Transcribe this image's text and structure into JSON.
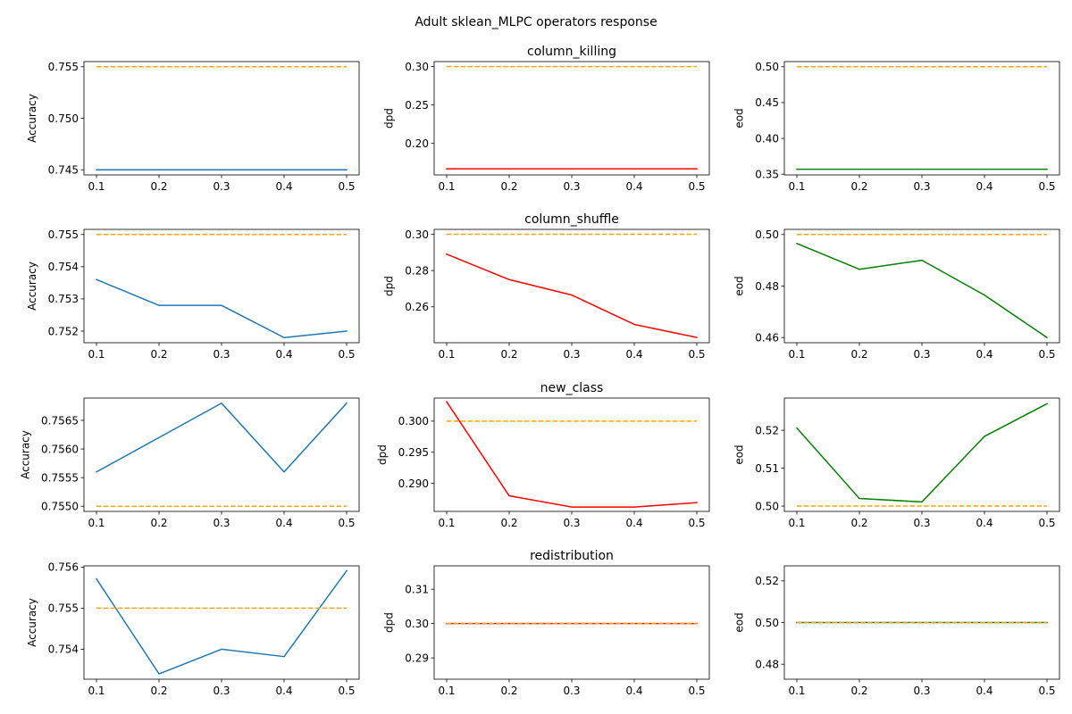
{
  "figure": {
    "title": "Adult sklean_MLPC operators response",
    "background": "#ffffff"
  },
  "chart_data": [
    {
      "type": "line",
      "row": 0,
      "col": 0,
      "title": "",
      "xlabel": "",
      "ylabel": "Accuracy",
      "x": [
        0.1,
        0.2,
        0.3,
        0.4,
        0.5
      ],
      "xticks": [
        "0.1",
        "0.2",
        "0.3",
        "0.4",
        "0.5"
      ],
      "xlim": [
        0.08,
        0.52
      ],
      "yticks": [
        "0.745",
        "0.750",
        "0.755"
      ],
      "ylim": [
        0.7445,
        0.7555
      ],
      "series": [
        {
          "values": [
            0.745,
            0.745,
            0.745,
            0.745,
            0.745
          ],
          "color": "#1f77b4",
          "style": "solid"
        },
        {
          "values": [
            0.755,
            0.755,
            0.755,
            0.755,
            0.755
          ],
          "color": "#ffa500",
          "style": "dashed"
        }
      ]
    },
    {
      "type": "line",
      "row": 0,
      "col": 1,
      "title": "column_killing",
      "xlabel": "",
      "ylabel": "dpd",
      "x": [
        0.1,
        0.2,
        0.3,
        0.4,
        0.5
      ],
      "xticks": [
        "0.1",
        "0.2",
        "0.3",
        "0.4",
        "0.5"
      ],
      "xlim": [
        0.08,
        0.52
      ],
      "yticks": [
        "0.20",
        "0.25",
        "0.30"
      ],
      "ylim": [
        0.159,
        0.3065
      ],
      "series": [
        {
          "values": [
            0.167,
            0.167,
            0.167,
            0.167,
            0.167
          ],
          "color": "#ff0000",
          "style": "solid"
        },
        {
          "values": [
            0.3,
            0.3,
            0.3,
            0.3,
            0.3
          ],
          "color": "#ffa500",
          "style": "dashed"
        }
      ]
    },
    {
      "type": "line",
      "row": 0,
      "col": 2,
      "title": "",
      "xlabel": "",
      "ylabel": "eod",
      "x": [
        0.1,
        0.2,
        0.3,
        0.4,
        0.5
      ],
      "xticks": [
        "0.1",
        "0.2",
        "0.3",
        "0.4",
        "0.5"
      ],
      "xlim": [
        0.08,
        0.52
      ],
      "yticks": [
        "0.35",
        "0.40",
        "0.45",
        "0.50"
      ],
      "ylim": [
        0.349,
        0.5072
      ],
      "series": [
        {
          "values": [
            0.357,
            0.357,
            0.357,
            0.357,
            0.357
          ],
          "color": "#008000",
          "style": "solid"
        },
        {
          "values": [
            0.5,
            0.5,
            0.5,
            0.5,
            0.5
          ],
          "color": "#ffa500",
          "style": "dashed"
        }
      ]
    },
    {
      "type": "line",
      "row": 1,
      "col": 0,
      "title": "",
      "xlabel": "",
      "ylabel": "Accuracy",
      "x": [
        0.1,
        0.2,
        0.3,
        0.4,
        0.5
      ],
      "xticks": [
        "0.1",
        "0.2",
        "0.3",
        "0.4",
        "0.5"
      ],
      "xlim": [
        0.08,
        0.52
      ],
      "yticks": [
        "0.752",
        "0.753",
        "0.754",
        "0.755"
      ],
      "ylim": [
        0.75164,
        0.75516
      ],
      "series": [
        {
          "values": [
            0.7536,
            0.7528,
            0.7528,
            0.7518,
            0.752
          ],
          "color": "#1f77b4",
          "style": "solid"
        },
        {
          "values": [
            0.755,
            0.755,
            0.755,
            0.755,
            0.755
          ],
          "color": "#ffa500",
          "style": "dashed"
        }
      ]
    },
    {
      "type": "line",
      "row": 1,
      "col": 1,
      "title": "column_shuffle",
      "xlabel": "",
      "ylabel": "dpd",
      "x": [
        0.1,
        0.2,
        0.3,
        0.4,
        0.5
      ],
      "xticks": [
        "0.1",
        "0.2",
        "0.3",
        "0.4",
        "0.5"
      ],
      "xlim": [
        0.08,
        0.52
      ],
      "yticks": [
        "0.26",
        "0.28",
        "0.30"
      ],
      "ylim": [
        0.2402,
        0.3027
      ],
      "series": [
        {
          "values": [
            0.289,
            0.275,
            0.2665,
            0.2503,
            0.2431
          ],
          "color": "#ff0000",
          "style": "solid"
        },
        {
          "values": [
            0.3,
            0.3,
            0.3,
            0.3,
            0.3
          ],
          "color": "#ffa500",
          "style": "dashed"
        }
      ]
    },
    {
      "type": "line",
      "row": 1,
      "col": 2,
      "title": "",
      "xlabel": "",
      "ylabel": "eod",
      "x": [
        0.1,
        0.2,
        0.3,
        0.4,
        0.5
      ],
      "xticks": [
        "0.1",
        "0.2",
        "0.3",
        "0.4",
        "0.5"
      ],
      "xlim": [
        0.08,
        0.52
      ],
      "yticks": [
        "0.46",
        "0.48",
        "0.50"
      ],
      "ylim": [
        0.458,
        0.502
      ],
      "series": [
        {
          "values": [
            0.4965,
            0.4865,
            0.49,
            0.4765,
            0.46
          ],
          "color": "#008000",
          "style": "solid"
        },
        {
          "values": [
            0.5,
            0.5,
            0.5,
            0.5,
            0.5
          ],
          "color": "#ffa500",
          "style": "dashed"
        }
      ]
    },
    {
      "type": "line",
      "row": 2,
      "col": 0,
      "title": "",
      "xlabel": "",
      "ylabel": "Accuracy",
      "x": [
        0.1,
        0.2,
        0.3,
        0.4,
        0.5
      ],
      "xticks": [
        "0.1",
        "0.2",
        "0.3",
        "0.4",
        "0.5"
      ],
      "xlim": [
        0.08,
        0.52
      ],
      "yticks": [
        "0.7550",
        "0.7555",
        "0.7560",
        "0.7565"
      ],
      "ylim": [
        0.75491,
        0.75689
      ],
      "series": [
        {
          "values": [
            0.7556,
            0.7562,
            0.7568,
            0.7556,
            0.7568
          ],
          "color": "#1f77b4",
          "style": "solid"
        },
        {
          "values": [
            0.755,
            0.755,
            0.755,
            0.755,
            0.755
          ],
          "color": "#ffa500",
          "style": "dashed"
        }
      ]
    },
    {
      "type": "line",
      "row": 2,
      "col": 1,
      "title": "new_class",
      "xlabel": "",
      "ylabel": "dpd",
      "x": [
        0.1,
        0.2,
        0.3,
        0.4,
        0.5
      ],
      "xticks": [
        "0.1",
        "0.2",
        "0.3",
        "0.4",
        "0.5"
      ],
      "xlim": [
        0.08,
        0.52
      ],
      "yticks": [
        "0.290",
        "0.295",
        "0.300"
      ],
      "ylim": [
        0.2855,
        0.3037
      ],
      "series": [
        {
          "values": [
            0.3031,
            0.288,
            0.2862,
            0.2862,
            0.2869
          ],
          "color": "#ff0000",
          "style": "solid"
        },
        {
          "values": [
            0.3,
            0.3,
            0.3,
            0.3,
            0.3
          ],
          "color": "#ffa500",
          "style": "dashed"
        }
      ]
    },
    {
      "type": "line",
      "row": 2,
      "col": 2,
      "title": "",
      "xlabel": "",
      "ylabel": "eod",
      "x": [
        0.1,
        0.2,
        0.3,
        0.4,
        0.5
      ],
      "xticks": [
        "0.1",
        "0.2",
        "0.3",
        "0.4",
        "0.5"
      ],
      "xlim": [
        0.08,
        0.52
      ],
      "yticks": [
        "0.50",
        "0.51",
        "0.52"
      ],
      "ylim": [
        0.4986,
        0.5285
      ],
      "series": [
        {
          "values": [
            0.5206,
            0.502,
            0.5011,
            0.5184,
            0.527
          ],
          "color": "#008000",
          "style": "solid"
        },
        {
          "values": [
            0.5,
            0.5,
            0.5,
            0.5,
            0.5
          ],
          "color": "#ffa500",
          "style": "dashed"
        }
      ]
    },
    {
      "type": "line",
      "row": 3,
      "col": 0,
      "title": "",
      "xlabel": "",
      "ylabel": "Accuracy",
      "x": [
        0.1,
        0.2,
        0.3,
        0.4,
        0.5
      ],
      "xticks": [
        "0.1",
        "0.2",
        "0.3",
        "0.4",
        "0.5"
      ],
      "xlim": [
        0.08,
        0.52
      ],
      "yticks": [
        "0.754",
        "0.755",
        "0.756"
      ],
      "ylim": [
        0.75327,
        0.75603
      ],
      "series": [
        {
          "values": [
            0.75571,
            0.7534,
            0.754,
            0.75382,
            0.75591
          ],
          "color": "#1f77b4",
          "style": "solid"
        },
        {
          "values": [
            0.755,
            0.755,
            0.755,
            0.755,
            0.755
          ],
          "color": "#ffa500",
          "style": "dashed"
        }
      ]
    },
    {
      "type": "line",
      "row": 3,
      "col": 1,
      "title": "redistribution",
      "xlabel": "",
      "ylabel": "dpd",
      "x": [
        0.1,
        0.2,
        0.3,
        0.4,
        0.5
      ],
      "xticks": [
        "0.1",
        "0.2",
        "0.3",
        "0.4",
        "0.5"
      ],
      "xlim": [
        0.08,
        0.52
      ],
      "yticks": [
        "0.29",
        "0.30",
        "0.31"
      ],
      "ylim": [
        0.2838,
        0.3168
      ],
      "series": [
        {
          "values": [
            0.3,
            0.3,
            0.3,
            0.3,
            0.3
          ],
          "color": "#ff0000",
          "style": "solid"
        },
        {
          "values": [
            0.3,
            0.3,
            0.3,
            0.3,
            0.3
          ],
          "color": "#ffa500",
          "style": "dashed"
        }
      ]
    },
    {
      "type": "line",
      "row": 3,
      "col": 2,
      "title": "",
      "xlabel": "",
      "ylabel": "eod",
      "x": [
        0.1,
        0.2,
        0.3,
        0.4,
        0.5
      ],
      "xticks": [
        "0.1",
        "0.2",
        "0.3",
        "0.4",
        "0.5"
      ],
      "xlim": [
        0.08,
        0.52
      ],
      "yticks": [
        "0.48",
        "0.50",
        "0.52"
      ],
      "ylim": [
        0.4728,
        0.5272
      ],
      "series": [
        {
          "values": [
            0.5,
            0.5,
            0.5,
            0.5,
            0.5
          ],
          "color": "#008000",
          "style": "solid"
        },
        {
          "values": [
            0.5,
            0.5,
            0.5,
            0.5,
            0.5
          ],
          "color": "#ffa500",
          "style": "dashed"
        }
      ]
    }
  ]
}
